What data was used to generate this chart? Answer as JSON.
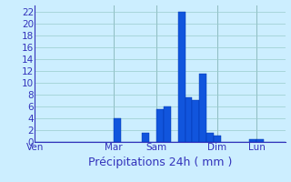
{
  "title": "Précipitations 24h ( mm )",
  "bar_color": "#1155dd",
  "bar_edge_color": "#0033aa",
  "background_color": "#cceeff",
  "grid_color": "#99cccc",
  "axis_label_color": "#3333bb",
  "tick_color": "#3333bb",
  "ylim": [
    0,
    23
  ],
  "yticks": [
    0,
    2,
    4,
    6,
    8,
    10,
    12,
    14,
    16,
    18,
    20,
    22
  ],
  "n_bars": 35,
  "bar_heights": [
    0,
    0,
    0,
    0,
    0,
    0,
    0,
    0,
    0,
    0,
    0,
    4,
    0,
    0,
    0,
    1.5,
    0,
    5.5,
    6,
    0,
    22,
    7.5,
    7,
    11.5,
    1.5,
    1,
    0,
    0,
    0,
    0,
    0.5,
    0.5,
    0,
    0,
    0
  ],
  "xtick_positions": [
    0,
    11,
    17,
    25.5,
    31
  ],
  "xtick_labels": [
    "Ven",
    "Mar",
    "Sam",
    "Dim",
    "Lun"
  ],
  "vline_positions": [
    0,
    11,
    17,
    25.5,
    31
  ],
  "title_fontsize": 9,
  "tick_fontsize": 7.5
}
